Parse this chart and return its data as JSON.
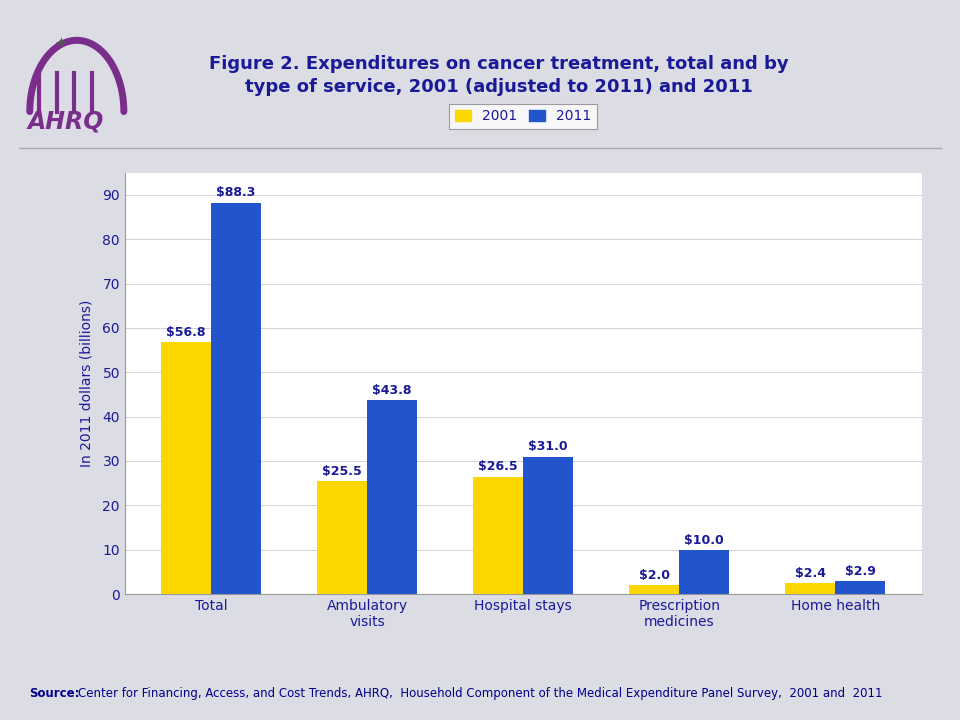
{
  "title": "Figure 2. Expenditures on cancer treatment, total and by\ntype of service, 2001 (adjusted to 2011) and 2011",
  "title_color": "#1A1A99",
  "title_fontsize": 13,
  "ylabel": "In 2011 dollars (billions)",
  "ylabel_color": "#1A1A99",
  "categories": [
    "Total",
    "Ambulatory\nvisits",
    "Hospital stays",
    "Prescription\nmedicines",
    "Home health"
  ],
  "values_2001": [
    56.8,
    25.5,
    26.5,
    2.0,
    2.4
  ],
  "values_2011": [
    88.3,
    43.8,
    31.0,
    10.0,
    2.9
  ],
  "color_2001": "#FFD700",
  "color_2011": "#2255CC",
  "legend_labels": [
    "2001",
    "2011"
  ],
  "ylim": [
    0,
    95
  ],
  "yticks": [
    0,
    10,
    20,
    30,
    40,
    50,
    60,
    70,
    80,
    90
  ],
  "label_color": "#1A1A99",
  "label_fontsize": 9,
  "source_text": "Center for Financing, Access, and Cost Trends, AHRQ,  Household Component of the Medical Expenditure Panel Survey,  2001 and  2011",
  "source_bold": "Source:",
  "source_color": "#00008B",
  "source_fontsize": 8.5,
  "background_color": "#DCDCE4",
  "plot_bg_color": "#FFFFFF",
  "bar_width": 0.32
}
